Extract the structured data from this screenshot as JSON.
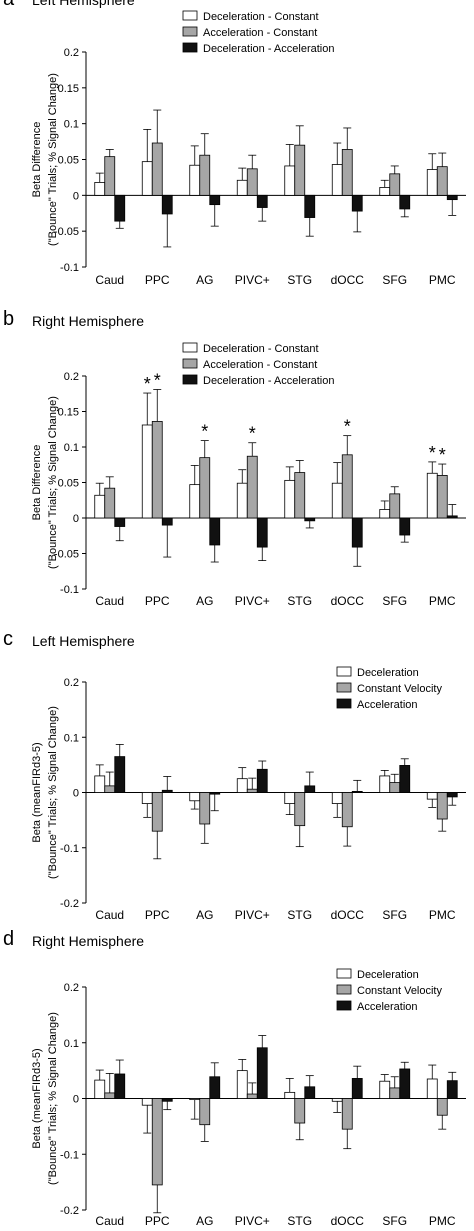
{
  "panels": [
    {
      "letter": "a",
      "title": "Left Hemisphere"
    },
    {
      "letter": "b",
      "title": "Right Hemisphere"
    },
    {
      "letter": "c",
      "title": "Left Hemisphere"
    },
    {
      "letter": "d",
      "title": "Right Hemisphere"
    }
  ],
  "colors": {
    "white": "#ffffff",
    "gray": "#a6a6a6",
    "black": "#111111"
  },
  "chart_data": [
    {
      "type": "bar",
      "categories": [
        "Caud",
        "PPC",
        "AG",
        "PIVC+",
        "STG",
        "dOCC",
        "SFG",
        "PMC"
      ],
      "ylabel": "Beta Difference",
      "ylabel2": "(\"Bounce\" Trials; % Signal Change)",
      "ylim": [
        -0.1,
        0.2
      ],
      "yticks": [
        "-0.1",
        "-0.05",
        "0",
        "0.05",
        "0.1",
        "0.15",
        "0.2"
      ],
      "legend_placement": "top",
      "series": [
        {
          "name": "Deceleration - Constant",
          "color": "white",
          "values": [
            0.018,
            0.047,
            0.042,
            0.021,
            0.041,
            0.043,
            0.011,
            0.036
          ],
          "errors": [
            0.013,
            0.045,
            0.027,
            0.017,
            0.03,
            0.03,
            0.01,
            0.022
          ]
        },
        {
          "name": "Acceleration - Constant",
          "color": "gray",
          "values": [
            0.054,
            0.073,
            0.056,
            0.037,
            0.07,
            0.064,
            0.03,
            0.04
          ],
          "errors": [
            0.01,
            0.046,
            0.03,
            0.019,
            0.027,
            0.03,
            0.011,
            0.019
          ]
        },
        {
          "name": "Deceleration - Acceleration",
          "color": "black",
          "values": [
            -0.036,
            -0.026,
            -0.013,
            -0.017,
            -0.031,
            -0.022,
            -0.019,
            -0.006
          ],
          "errors": [
            0.01,
            0.046,
            0.03,
            0.019,
            0.026,
            0.029,
            0.011,
            0.022
          ]
        }
      ],
      "significance": []
    },
    {
      "type": "bar",
      "categories": [
        "Caud",
        "PPC",
        "AG",
        "PIVC+",
        "STG",
        "dOCC",
        "SFG",
        "PMC"
      ],
      "ylabel": "Beta Difference",
      "ylabel2": "(\"Bounce\" Trials; % Signal Change)",
      "ylim": [
        -0.1,
        0.2
      ],
      "yticks": [
        "-0.1",
        "-0.05",
        "0",
        "0.05",
        "0.1",
        "0.15",
        "0.2"
      ],
      "legend_placement": "top",
      "series": [
        {
          "name": "Deceleration - Constant",
          "color": "white",
          "values": [
            0.032,
            0.131,
            0.047,
            0.049,
            0.053,
            0.049,
            0.012,
            0.063
          ],
          "errors": [
            0.017,
            0.045,
            0.027,
            0.019,
            0.019,
            0.029,
            0.012,
            0.016
          ]
        },
        {
          "name": "Acceleration - Constant",
          "color": "gray",
          "values": [
            0.042,
            0.136,
            0.085,
            0.087,
            0.064,
            0.089,
            0.034,
            0.06
          ],
          "errors": [
            0.016,
            0.045,
            0.024,
            0.019,
            0.017,
            0.027,
            0.01,
            0.016
          ]
        },
        {
          "name": "Deceleration - Acceleration",
          "color": "black",
          "values": [
            -0.012,
            -0.01,
            -0.038,
            -0.041,
            -0.004,
            -0.041,
            -0.024,
            0.003
          ],
          "errors": [
            0.02,
            0.045,
            0.024,
            0.019,
            0.01,
            0.027,
            0.01,
            0.016
          ]
        }
      ],
      "significance": [
        {
          "category": 1,
          "series": 0,
          "label": "*"
        },
        {
          "category": 1,
          "series": 1,
          "label": "*"
        },
        {
          "category": 2,
          "series": 1,
          "label": "*"
        },
        {
          "category": 3,
          "series": 1,
          "label": "*"
        },
        {
          "category": 5,
          "series": 1,
          "label": "*"
        },
        {
          "category": 7,
          "series": 0,
          "label": "*"
        },
        {
          "category": 7,
          "series": 1,
          "label": "*"
        }
      ]
    },
    {
      "type": "bar",
      "categories": [
        "Caud",
        "PPC",
        "AG",
        "PIVC+",
        "STG",
        "dOCC",
        "SFG",
        "PMC"
      ],
      "ylabel": "Beta (meanFIRd3-5)",
      "ylabel2": "(\"Bounce\" Trials; % Signal Change)",
      "ylim": [
        -0.2,
        0.2
      ],
      "yticks": [
        "-0.2",
        "-0.1",
        "0",
        "0.1",
        "0.2"
      ],
      "legend_placement": "top-right",
      "series": [
        {
          "name": "Deceleration",
          "color": "white",
          "values": [
            0.03,
            -0.02,
            -0.015,
            0.025,
            -0.02,
            -0.02,
            0.03,
            -0.012
          ],
          "errors": [
            0.02,
            0.025,
            0.015,
            0.02,
            0.02,
            0.025,
            0.01,
            0.015
          ]
        },
        {
          "name": "Constant Velocity",
          "color": "gray",
          "values": [
            0.012,
            -0.07,
            -0.057,
            0.006,
            -0.06,
            -0.062,
            0.018,
            -0.048
          ],
          "errors": [
            0.025,
            0.05,
            0.035,
            0.02,
            0.038,
            0.035,
            0.015,
            0.022
          ]
        },
        {
          "name": "Acceleration",
          "color": "black",
          "values": [
            0.065,
            0.004,
            -0.003,
            0.042,
            0.012,
            0.002,
            0.049,
            -0.008
          ],
          "errors": [
            0.022,
            0.025,
            0.03,
            0.015,
            0.025,
            0.02,
            0.012,
            0.015
          ]
        }
      ],
      "significance": []
    },
    {
      "type": "bar",
      "categories": [
        "Caud",
        "PPC",
        "AG",
        "PIVC+",
        "STG",
        "dOCC",
        "SFG",
        "PMC"
      ],
      "ylabel": "Beta (meanFIRd3-5)",
      "ylabel2": "(\"Bounce\" Trials; % Signal Change)",
      "ylim": [
        -0.2,
        0.2
      ],
      "yticks": [
        "-0.2",
        "-0.1",
        "0",
        "0.1",
        "0.2"
      ],
      "legend_placement": "top-right",
      "series": [
        {
          "name": "Deceleration",
          "color": "white",
          "values": [
            0.033,
            -0.012,
            -0.002,
            0.05,
            0.011,
            -0.005,
            0.031,
            0.035
          ],
          "errors": [
            0.018,
            0.05,
            0.035,
            0.02,
            0.025,
            0.02,
            0.012,
            0.025
          ]
        },
        {
          "name": "Constant Velocity",
          "color": "gray",
          "values": [
            0.01,
            -0.155,
            -0.047,
            0.008,
            -0.044,
            -0.055,
            0.019,
            -0.03
          ],
          "errors": [
            0.035,
            0.05,
            0.03,
            0.02,
            0.03,
            0.035,
            0.02,
            0.025
          ]
        },
        {
          "name": "Acceleration",
          "color": "black",
          "values": [
            0.044,
            -0.005,
            0.039,
            0.091,
            0.021,
            0.036,
            0.053,
            0.032
          ],
          "errors": [
            0.025,
            0.015,
            0.025,
            0.022,
            0.02,
            0.022,
            0.012,
            0.015
          ]
        }
      ],
      "significance": []
    }
  ]
}
